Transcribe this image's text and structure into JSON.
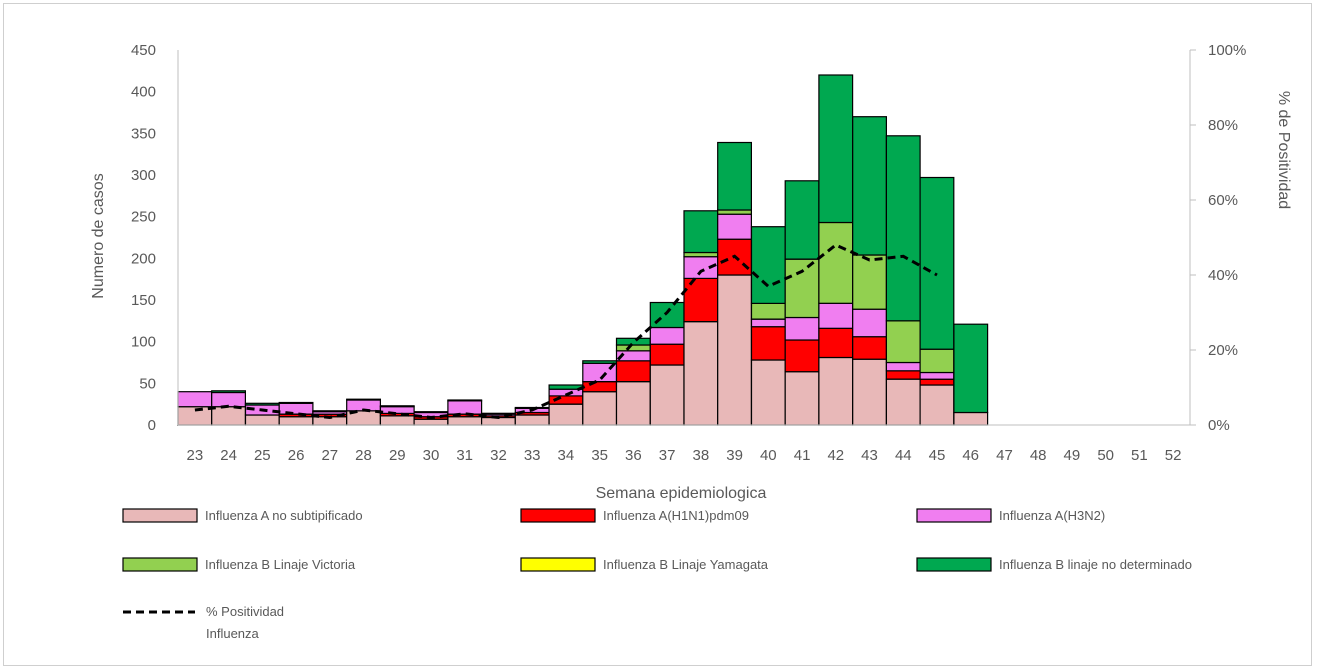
{
  "chart_data": {
    "type": "bar",
    "stacked": true,
    "xlabel": "Semana epidemiologica",
    "ylabel": "Numero de casos",
    "y2label": "% de Positividad",
    "ylim": [
      0,
      450
    ],
    "y2lim": [
      0,
      1
    ],
    "yticks": [
      0,
      50,
      100,
      150,
      200,
      250,
      300,
      350,
      400,
      450
    ],
    "y2ticks": [
      "0%",
      "20%",
      "40%",
      "60%",
      "80%",
      "100%"
    ],
    "categories": [
      "23",
      "24",
      "25",
      "26",
      "27",
      "28",
      "29",
      "30",
      "31",
      "32",
      "33",
      "34",
      "35",
      "36",
      "37",
      "38",
      "39",
      "40",
      "41",
      "42",
      "43",
      "44",
      "45",
      "46",
      "47",
      "48",
      "49",
      "50",
      "51",
      "52"
    ],
    "series": [
      {
        "name": "Influenza A no subtipificado",
        "color": "#e8b8b8",
        "values": [
          22,
          22,
          12,
          10,
          10,
          17,
          11,
          7,
          10,
          9,
          12,
          25,
          40,
          52,
          72,
          124,
          180,
          78,
          64,
          81,
          79,
          55,
          48,
          15,
          0,
          0,
          0,
          0,
          0,
          0
        ]
      },
      {
        "name": "Influenza A(H1N1)pdm09",
        "color": "#ff0000",
        "values": [
          0,
          0,
          0,
          3,
          3,
          0,
          3,
          3,
          3,
          2,
          3,
          10,
          12,
          25,
          25,
          52,
          43,
          40,
          38,
          35,
          27,
          10,
          7,
          0,
          0,
          0,
          0,
          0,
          0,
          0
        ]
      },
      {
        "name": "Influenza A(H3N2)",
        "color": "#f07ef0",
        "values": [
          18,
          17,
          12,
          13,
          3,
          13,
          8,
          5,
          16,
          2,
          5,
          8,
          22,
          12,
          20,
          26,
          30,
          9,
          27,
          30,
          33,
          10,
          8,
          0,
          0,
          0,
          0,
          0,
          0,
          0
        ]
      },
      {
        "name": "Influenza B Linaje Victoria",
        "color": "#92d050",
        "values": [
          0,
          0,
          0,
          0,
          0,
          0,
          0,
          0,
          0,
          0,
          0,
          0,
          0,
          7,
          0,
          5,
          5,
          19,
          70,
          97,
          65,
          50,
          28,
          0,
          0,
          0,
          0,
          0,
          0,
          0
        ]
      },
      {
        "name": "Influenza B Linaje Yamagata",
        "color": "#ffff00",
        "values": [
          0,
          0,
          0,
          0,
          0,
          0,
          0,
          0,
          0,
          0,
          0,
          0,
          0,
          0,
          0,
          0,
          0,
          0,
          0,
          0,
          0,
          0,
          0,
          0,
          0,
          0,
          0,
          0,
          0,
          0
        ]
      },
      {
        "name": "Influenza B linaje no determinado",
        "color": "#00a850",
        "values": [
          0,
          2,
          2,
          1,
          1,
          1,
          1,
          1,
          1,
          1,
          1,
          5,
          3,
          8,
          30,
          50,
          81,
          92,
          94,
          177,
          166,
          222,
          206,
          106,
          0,
          0,
          0,
          0,
          0,
          0
        ]
      }
    ],
    "line": {
      "name": "% Positividad Influenza",
      "color": "#000000",
      "style": "dashed",
      "values": [
        0.04,
        0.05,
        0.04,
        0.03,
        0.02,
        0.04,
        0.03,
        0.02,
        0.03,
        0.02,
        0.04,
        0.08,
        0.12,
        0.22,
        0.3,
        0.41,
        0.45,
        0.37,
        0.41,
        0.48,
        0.44,
        0.45,
        0.4,
        null,
        null,
        null,
        null,
        null,
        null,
        null
      ]
    },
    "legend_position": "bottom",
    "grid": false
  }
}
